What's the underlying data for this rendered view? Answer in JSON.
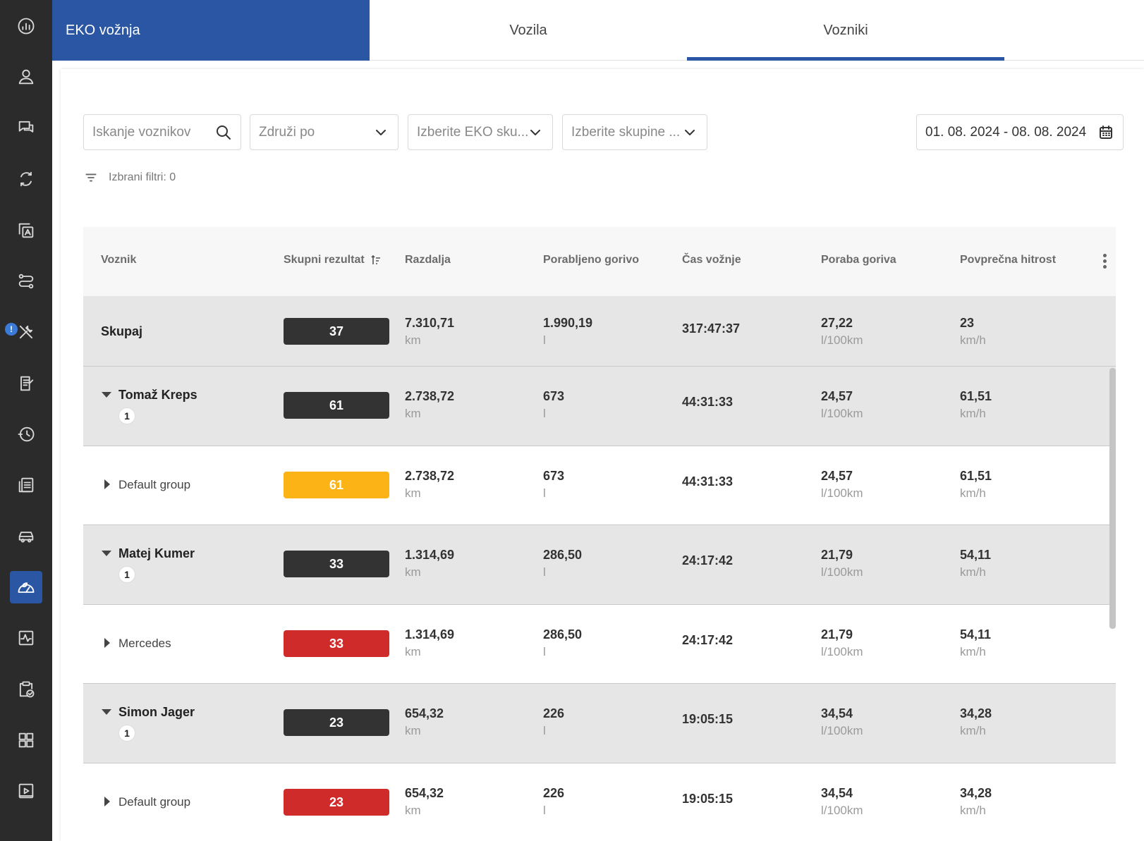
{
  "sidebar": {
    "items": [
      {
        "icon": "dashboard-gauge-icon"
      },
      {
        "icon": "user-icon"
      },
      {
        "icon": "chat-icon"
      },
      {
        "icon": "sync-icon"
      },
      {
        "icon": "translate-document-icon"
      },
      {
        "icon": "route-icon"
      },
      {
        "icon": "tools-icon",
        "badge": "!"
      },
      {
        "icon": "reports-icon"
      },
      {
        "icon": "history-icon"
      },
      {
        "icon": "documents-icon"
      },
      {
        "icon": "vehicle-icon"
      },
      {
        "icon": "eco-driving-icon",
        "active": true
      },
      {
        "icon": "activity-icon"
      },
      {
        "icon": "tasks-icon"
      },
      {
        "icon": "widgets-icon"
      },
      {
        "icon": "playback-icon"
      }
    ]
  },
  "tabs": {
    "brand": "EKO vožnja",
    "vehicles": "Vozila",
    "drivers": "Vozniki",
    "active": "drivers"
  },
  "filters": {
    "search_placeholder": "Iskanje voznikov",
    "group_by": "Združi po",
    "eco_groups": "Izberite EKO sku...",
    "groups": "Izberite skupine ...",
    "date_range": "01. 08. 2024 - 08. 08. 2024",
    "selected_label": "Izbrani filtri: 0"
  },
  "table": {
    "headers": {
      "driver": "Voznik",
      "score": "Skupni rezultat",
      "distance": "Razdalja",
      "fuel_used": "Porabljeno gorivo",
      "drive_time": "Čas vožnje",
      "consumption": "Poraba goriva",
      "avg_speed": "Povprečna hitrost"
    },
    "units": {
      "distance": "km",
      "fuel": "l",
      "consumption": "l/100km",
      "speed": "km/h"
    },
    "total": {
      "label": "Skupaj",
      "score": "37",
      "distance": "7.310,71",
      "fuel": "1.990,19",
      "time": "317:47:37",
      "consumption": "27,22",
      "speed": "23"
    },
    "drivers": [
      {
        "name": "Tomaž Kreps",
        "count": "1",
        "score": "61",
        "distance": "2.738,72",
        "fuel": "673",
        "time": "44:31:33",
        "consumption": "24,57",
        "speed": "61,51",
        "group": {
          "name": "Default group",
          "score": "61",
          "score_color": "#fbb316",
          "distance": "2.738,72",
          "fuel": "673",
          "time": "44:31:33",
          "consumption": "24,57",
          "speed": "61,51"
        }
      },
      {
        "name": "Matej Kumer",
        "count": "1",
        "score": "33",
        "distance": "1.314,69",
        "fuel": "286,50",
        "time": "24:17:42",
        "consumption": "21,79",
        "speed": "54,11",
        "group": {
          "name": "Mercedes",
          "score": "33",
          "score_color": "#d02b2b",
          "distance": "1.314,69",
          "fuel": "286,50",
          "time": "24:17:42",
          "consumption": "21,79",
          "speed": "54,11"
        }
      },
      {
        "name": "Simon Jager",
        "count": "1",
        "score": "23",
        "distance": "654,32",
        "fuel": "226",
        "time": "19:05:15",
        "consumption": "34,54",
        "speed": "34,28",
        "group": {
          "name": "Default group",
          "score": "23",
          "score_color": "#d02b2b",
          "distance": "654,32",
          "fuel": "226",
          "time": "19:05:15",
          "consumption": "34,54",
          "speed": "34,28"
        }
      }
    ]
  },
  "colors": {
    "brand": "#2b56a3",
    "sidebar": "#2b2b2b",
    "score_dark": "#333333",
    "score_yellow": "#fbb316",
    "score_red": "#d02b2b"
  }
}
